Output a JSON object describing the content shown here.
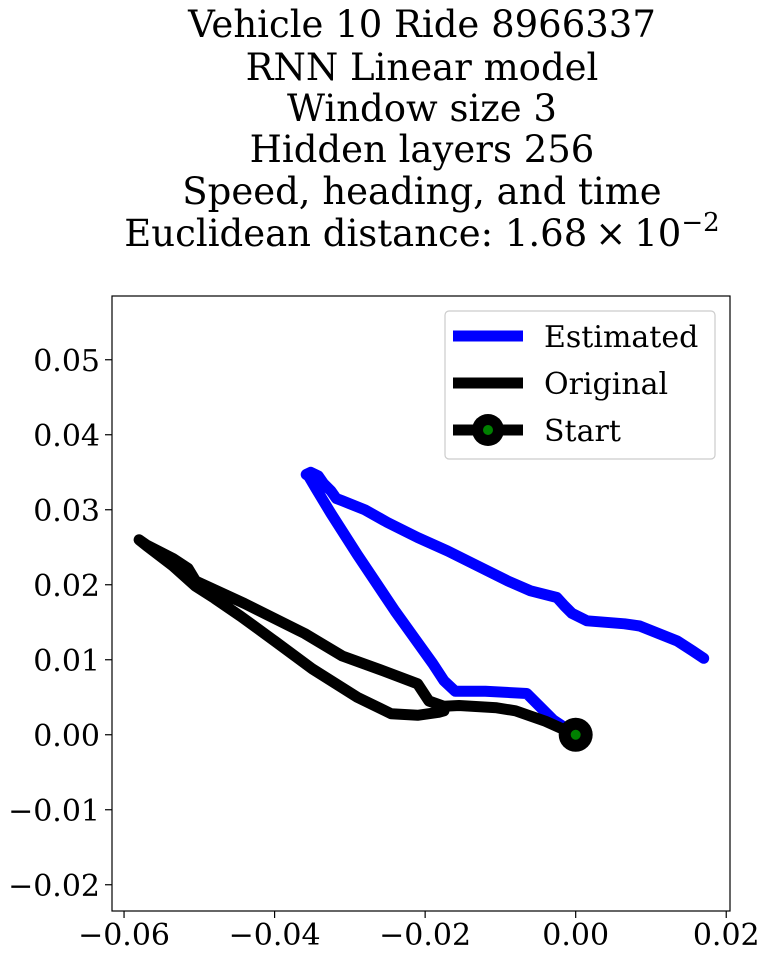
{
  "chart_data": {
    "type": "line",
    "title_lines": [
      "Vehicle 10 Ride 8966337",
      "RNN Linear model",
      "Window size 3",
      "Hidden layers 256",
      "Speed, heading, and time"
    ],
    "title_metric": {
      "prefix": "Euclidean distance: 1.68",
      "times": "×",
      "base": "10",
      "exponent": "−2"
    },
    "xlabel": "",
    "ylabel": "",
    "xlim": [
      -0.0616,
      0.0205
    ],
    "ylim": [
      -0.0235,
      0.0585
    ],
    "x_ticks": [
      {
        "value": -0.06,
        "label": "−0.06"
      },
      {
        "value": -0.04,
        "label": "−0.04"
      },
      {
        "value": -0.02,
        "label": "−0.02"
      },
      {
        "value": 0.0,
        "label": "0.00"
      },
      {
        "value": 0.02,
        "label": "0.02"
      }
    ],
    "y_ticks": [
      {
        "value": -0.02,
        "label": "−0.02"
      },
      {
        "value": -0.01,
        "label": "−0.01"
      },
      {
        "value": 0.0,
        "label": "0.00"
      },
      {
        "value": 0.01,
        "label": "0.01"
      },
      {
        "value": 0.02,
        "label": "0.02"
      },
      {
        "value": 0.03,
        "label": "0.03"
      },
      {
        "value": 0.04,
        "label": "0.04"
      },
      {
        "value": 0.05,
        "label": "0.05"
      }
    ],
    "grid": false,
    "legend_position": "top-right",
    "series": [
      {
        "name": "Estimated",
        "color": "#0000ff",
        "x": [
          0.0,
          -0.003,
          -0.005,
          -0.0065,
          -0.012,
          -0.016,
          -0.0175,
          -0.019,
          -0.024,
          -0.029,
          -0.0325,
          -0.0345,
          -0.0355,
          -0.0358,
          -0.0352,
          -0.0342,
          -0.0335,
          -0.0325,
          -0.0318,
          -0.031,
          -0.028,
          -0.025,
          -0.021,
          -0.017,
          -0.013,
          -0.009,
          -0.006,
          -0.0025,
          -0.0015,
          -0.0005,
          0.0015,
          0.004,
          0.0065,
          0.0085,
          0.011,
          0.0135,
          0.0155,
          0.017
        ],
        "y": [
          0.0,
          0.002,
          0.004,
          0.0055,
          0.0058,
          0.0058,
          0.0072,
          0.0095,
          0.0165,
          0.024,
          0.0295,
          0.0328,
          0.0345,
          0.0347,
          0.035,
          0.0345,
          0.0335,
          0.0325,
          0.0315,
          0.0312,
          0.03,
          0.0283,
          0.0263,
          0.0245,
          0.0225,
          0.0205,
          0.0192,
          0.0183,
          0.0172,
          0.0162,
          0.0152,
          0.015,
          0.0148,
          0.0145,
          0.0135,
          0.0125,
          0.0112,
          0.0102
        ]
      },
      {
        "name": "Original",
        "color": "#000000",
        "x": [
          0.0,
          -0.004,
          -0.008,
          -0.0105,
          -0.0155,
          -0.0175,
          -0.0195,
          -0.021,
          -0.0255,
          -0.031,
          -0.036,
          -0.044,
          -0.0505,
          -0.0515,
          -0.0535,
          -0.057,
          -0.058,
          -0.057,
          -0.0535,
          -0.0505,
          -0.048,
          -0.0445,
          -0.04,
          -0.035,
          -0.029,
          -0.0245,
          -0.021,
          -0.0182,
          -0.0175
        ],
        "y": [
          0.0,
          0.0018,
          0.0032,
          0.0036,
          0.0039,
          0.0038,
          0.0045,
          0.0068,
          0.0085,
          0.0105,
          0.0135,
          0.0175,
          0.0205,
          0.0222,
          0.0235,
          0.0253,
          0.026,
          0.0252,
          0.0225,
          0.0198,
          0.0182,
          0.0158,
          0.0125,
          0.0088,
          0.005,
          0.0028,
          0.0026,
          0.003,
          0.0032
        ]
      }
    ],
    "start_point": {
      "name": "Start",
      "x": 0.0,
      "y": 0.0,
      "marker_edge": "#000000",
      "marker_face": "#008000"
    }
  }
}
